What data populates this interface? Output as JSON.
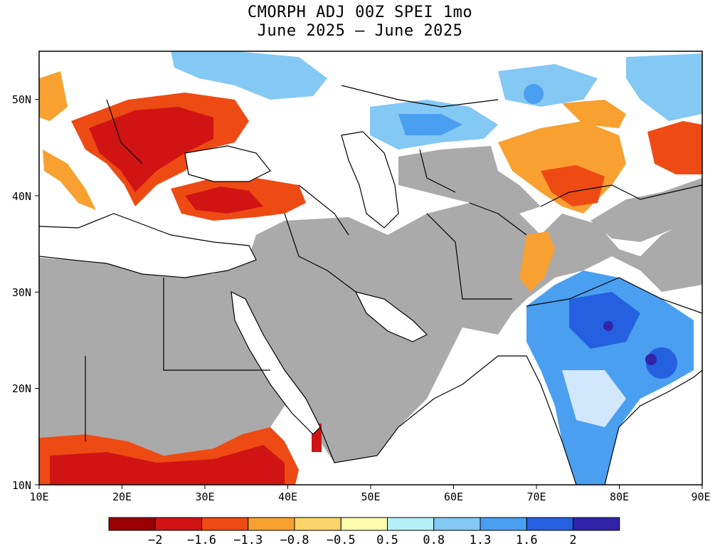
{
  "title_line1": "CMORPH ADJ 00Z SPEI 1mo",
  "title_line2": "June 2025 – June 2025",
  "x_ticks": [
    "10E",
    "20E",
    "30E",
    "40E",
    "50E",
    "60E",
    "70E",
    "80E",
    "90E"
  ],
  "y_ticks": [
    "10N",
    "20N",
    "30N",
    "40N",
    "50N"
  ],
  "x_range": [
    10,
    90
  ],
  "y_range": [
    10,
    55
  ],
  "colorbar": {
    "colors": [
      "#9b0000",
      "#d01414",
      "#ee4a14",
      "#f8a030",
      "#fbd46a",
      "#fffcb0",
      "#ffffff",
      "#b4f0f8",
      "#84c8f4",
      "#4a9ff0",
      "#2460e0",
      "#3224a8"
    ],
    "labels": [
      "−2",
      "−1.6",
      "−1.3",
      "−0.8",
      "−0.5",
      "0.5",
      "0.8",
      "1.3",
      "1.6",
      "2"
    ]
  },
  "legend_colors": {
    "no_data_gray": "#aaaaaa",
    "dry_red": "#d01414",
    "dry_orange": "#ee4a14",
    "wet_blue": "#4a9ff0"
  }
}
